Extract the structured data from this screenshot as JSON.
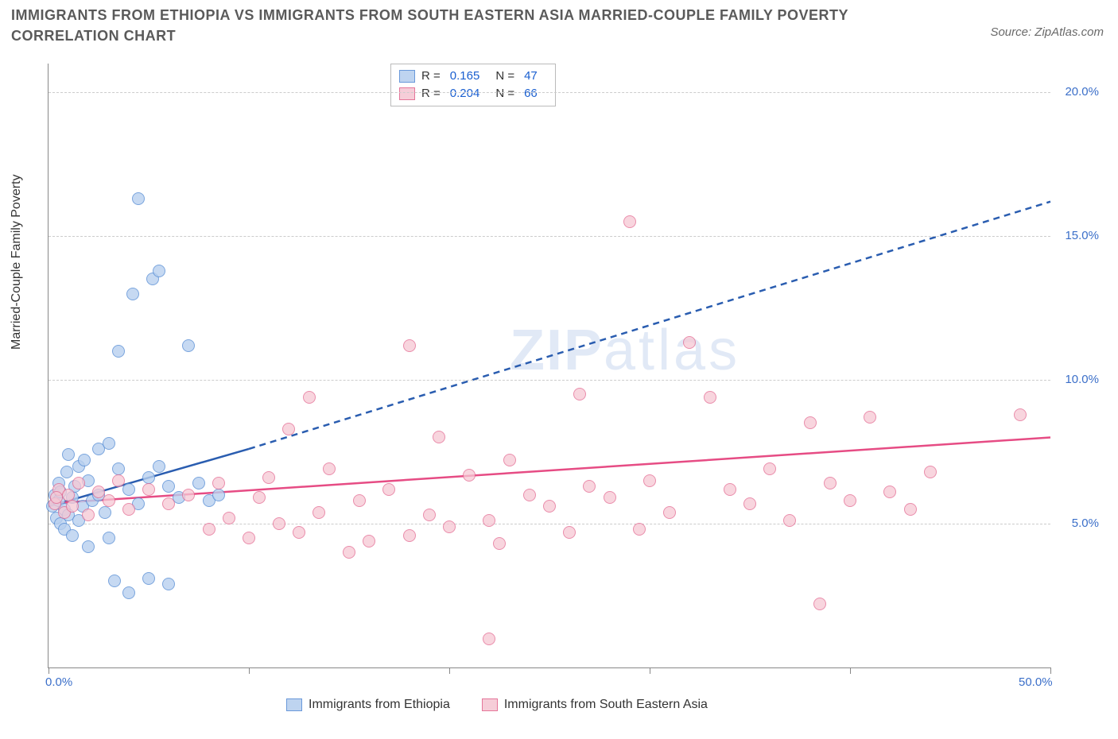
{
  "title": "IMMIGRANTS FROM ETHIOPIA VS IMMIGRANTS FROM SOUTH EASTERN ASIA MARRIED-COUPLE FAMILY POVERTY CORRELATION CHART",
  "source_label": "Source: ZipAtlas.com",
  "ylabel": "Married-Couple Family Poverty",
  "watermark_bold": "ZIP",
  "watermark_thin": "atlas",
  "chart": {
    "type": "scatter",
    "xlim": [
      0,
      50
    ],
    "ylim": [
      0,
      21
    ],
    "x_ticks": [
      0,
      10,
      20,
      30,
      40,
      50
    ],
    "x_tick_labels": [
      "0.0%",
      "",
      "",
      "",
      "",
      "50.0%"
    ],
    "y_ticks": [
      5,
      10,
      15,
      20
    ],
    "y_tick_labels": [
      "5.0%",
      "10.0%",
      "15.0%",
      "20.0%"
    ],
    "grid_color": "#cccccc",
    "background_color": "#ffffff",
    "axis_color": "#888888",
    "marker_radius": 8,
    "marker_stroke_width": 1.5,
    "series": [
      {
        "id": "ethiopia",
        "label": "Immigrants from Ethiopia",
        "R": "0.165",
        "N": "47",
        "marker_fill": "#b8d0ef",
        "marker_fill_opacity": 0.55,
        "marker_stroke": "#5a8fd6",
        "trend_color": "#2a5db0",
        "trend_width": 2.5,
        "trend_solid": {
          "x1": 0,
          "y1": 5.6,
          "x2": 10,
          "y2": 7.6
        },
        "trend_dash": {
          "x1": 10,
          "y1": 7.6,
          "x2": 50,
          "y2": 16.2
        },
        "points": [
          [
            0.2,
            5.6
          ],
          [
            0.3,
            6.0
          ],
          [
            0.4,
            5.2
          ],
          [
            0.5,
            5.8
          ],
          [
            0.5,
            6.4
          ],
          [
            0.6,
            5.0
          ],
          [
            0.6,
            6.1
          ],
          [
            0.8,
            5.5
          ],
          [
            0.8,
            4.8
          ],
          [
            0.9,
            6.8
          ],
          [
            1.0,
            5.3
          ],
          [
            1.0,
            7.4
          ],
          [
            1.2,
            5.9
          ],
          [
            1.2,
            4.6
          ],
          [
            1.3,
            6.3
          ],
          [
            1.5,
            7.0
          ],
          [
            1.5,
            5.1
          ],
          [
            1.7,
            5.6
          ],
          [
            1.8,
            7.2
          ],
          [
            2.0,
            6.5
          ],
          [
            2.0,
            4.2
          ],
          [
            2.2,
            5.8
          ],
          [
            2.5,
            7.6
          ],
          [
            2.5,
            6.0
          ],
          [
            2.8,
            5.4
          ],
          [
            3.0,
            7.8
          ],
          [
            3.0,
            4.5
          ],
          [
            3.3,
            3.0
          ],
          [
            3.5,
            6.9
          ],
          [
            3.5,
            11.0
          ],
          [
            4.0,
            6.2
          ],
          [
            4.0,
            2.6
          ],
          [
            4.2,
            13.0
          ],
          [
            4.5,
            5.7
          ],
          [
            4.5,
            16.3
          ],
          [
            5.0,
            3.1
          ],
          [
            5.0,
            6.6
          ],
          [
            5.2,
            13.5
          ],
          [
            5.5,
            7.0
          ],
          [
            5.5,
            13.8
          ],
          [
            6.0,
            6.3
          ],
          [
            6.0,
            2.9
          ],
          [
            6.5,
            5.9
          ],
          [
            7.0,
            11.2
          ],
          [
            7.5,
            6.4
          ],
          [
            8.0,
            5.8
          ],
          [
            8.5,
            6.0
          ]
        ]
      },
      {
        "id": "seasia",
        "label": "Immigrants from South Eastern Asia",
        "R": "0.204",
        "N": "66",
        "marker_fill": "#f6c8d4",
        "marker_fill_opacity": 0.5,
        "marker_stroke": "#e36890",
        "trend_color": "#e64c84",
        "trend_width": 2.5,
        "trend_solid": {
          "x1": 0,
          "y1": 5.7,
          "x2": 50,
          "y2": 8.0
        },
        "points": [
          [
            0.3,
            5.7
          ],
          [
            0.5,
            6.2
          ],
          [
            0.8,
            5.4
          ],
          [
            1.0,
            6.0
          ],
          [
            1.2,
            5.6
          ],
          [
            1.5,
            6.4
          ],
          [
            2.0,
            5.3
          ],
          [
            2.5,
            6.1
          ],
          [
            3.0,
            5.8
          ],
          [
            3.5,
            6.5
          ],
          [
            4.0,
            5.5
          ],
          [
            5.0,
            6.2
          ],
          [
            6.0,
            5.7
          ],
          [
            7.0,
            6.0
          ],
          [
            8.0,
            4.8
          ],
          [
            8.5,
            6.4
          ],
          [
            9.0,
            5.2
          ],
          [
            10.0,
            4.5
          ],
          [
            10.5,
            5.9
          ],
          [
            11.0,
            6.6
          ],
          [
            11.5,
            5.0
          ],
          [
            12.0,
            8.3
          ],
          [
            12.5,
            4.7
          ],
          [
            13.0,
            9.4
          ],
          [
            13.5,
            5.4
          ],
          [
            14.0,
            6.9
          ],
          [
            15.0,
            4.0
          ],
          [
            15.5,
            5.8
          ],
          [
            16.0,
            4.4
          ],
          [
            17.0,
            6.2
          ],
          [
            18.0,
            4.6
          ],
          [
            18.0,
            11.2
          ],
          [
            19.0,
            5.3
          ],
          [
            19.5,
            8.0
          ],
          [
            20.0,
            4.9
          ],
          [
            21.0,
            6.7
          ],
          [
            22.0,
            5.1
          ],
          [
            22.5,
            4.3
          ],
          [
            23.0,
            7.2
          ],
          [
            24.0,
            6.0
          ],
          [
            25.0,
            5.6
          ],
          [
            26.0,
            4.7
          ],
          [
            26.5,
            9.5
          ],
          [
            27.0,
            6.3
          ],
          [
            28.0,
            5.9
          ],
          [
            29.0,
            15.5
          ],
          [
            29.5,
            4.8
          ],
          [
            30.0,
            6.5
          ],
          [
            31.0,
            5.4
          ],
          [
            32.0,
            11.3
          ],
          [
            33.0,
            9.4
          ],
          [
            34.0,
            6.2
          ],
          [
            35.0,
            5.7
          ],
          [
            36.0,
            6.9
          ],
          [
            37.0,
            5.1
          ],
          [
            38.0,
            8.5
          ],
          [
            38.5,
            2.2
          ],
          [
            39.0,
            6.4
          ],
          [
            40.0,
            5.8
          ],
          [
            41.0,
            8.7
          ],
          [
            42.0,
            6.1
          ],
          [
            43.0,
            5.5
          ],
          [
            44.0,
            6.8
          ],
          [
            48.5,
            8.8
          ],
          [
            22.0,
            1.0
          ],
          [
            0.4,
            5.9
          ]
        ]
      }
    ]
  },
  "legend_top": {
    "R_label": "R =",
    "N_label": "N ="
  }
}
